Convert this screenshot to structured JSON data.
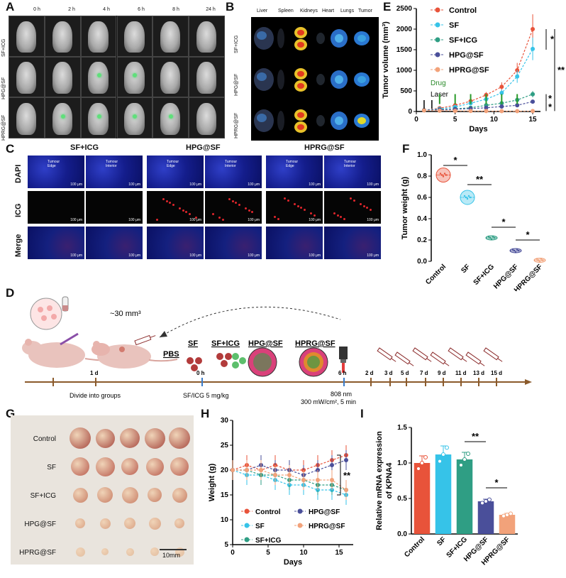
{
  "panel_labels": {
    "a": "A",
    "b": "B",
    "c": "C",
    "d": "D",
    "e": "E",
    "f": "F",
    "g": "G",
    "h": "H",
    "i": "I"
  },
  "panel_a": {
    "times": [
      "0 h",
      "2 h",
      "4 h",
      "6 h",
      "8 h",
      "24 h"
    ],
    "rows": [
      "SF+ICG",
      "HPG@SF",
      "HPRG@SF"
    ]
  },
  "panel_b": {
    "organs": [
      "Liver",
      "Spleen",
      "Kidneys",
      "Heart",
      "Lungs",
      "Tumor"
    ],
    "rows": [
      "SF+ICG",
      "HPG@SF",
      "HPRG@SF"
    ]
  },
  "panel_c": {
    "groups": [
      "SF+ICG",
      "HPG@SF",
      "HPRG@SF"
    ],
    "rows": [
      "DAPI",
      "ICG",
      "Merge"
    ],
    "tumour_edge": "Tumour Edge",
    "tumour_interior": "Tumour Interior",
    "scale_bar": "100 μm"
  },
  "panel_d": {
    "volume_label": "~30 mm³",
    "groups": [
      "PBS",
      "SF",
      "SF+ICG",
      "HPG@SF",
      "HPRG@SF"
    ],
    "ticks": [
      "1 d",
      "0 h",
      "6 h",
      "2 d",
      "3 d",
      "5 d",
      "7 d",
      "9 d",
      "11 d",
      "13 d",
      "15 d"
    ],
    "divide": "Divide into groups",
    "dose": "SF/ICG 5 mg/kg",
    "laser_wavelength": "808 nm",
    "laser_power": "300 mW/cm², 5 min"
  },
  "panel_g": {
    "rows": [
      "Control",
      "SF",
      "SF+ICG",
      "HPG@SF",
      "HPRG@SF"
    ],
    "scale": "10mm"
  },
  "chart_data": [
    {
      "id": "E",
      "type": "line",
      "xlabel": "Days",
      "ylabel": "Tumor volume (mm³)",
      "xlim": [
        0,
        16
      ],
      "ylim": [
        0,
        2500
      ],
      "xticks": [
        0,
        5,
        10,
        15
      ],
      "yticks": [
        0,
        500,
        1000,
        1500,
        2000,
        2500
      ],
      "x": [
        1,
        3,
        5,
        7,
        9,
        11,
        13,
        15
      ],
      "series": [
        {
          "name": "Control",
          "color": "#e8533a",
          "values": [
            30,
            80,
            150,
            250,
            400,
            600,
            1000,
            2000
          ]
        },
        {
          "name": "SF",
          "color": "#36c3e8",
          "values": [
            30,
            60,
            110,
            200,
            300,
            450,
            850,
            1520
          ]
        },
        {
          "name": "SF+ICG",
          "color": "#2f9e84",
          "values": [
            30,
            45,
            65,
            90,
            150,
            200,
            280,
            420
          ]
        },
        {
          "name": "HPG@SF",
          "color": "#4a4f9a",
          "values": [
            30,
            40,
            55,
            70,
            90,
            120,
            150,
            240
          ]
        },
        {
          "name": "HPRG@SF",
          "color": "#f2a27a",
          "values": [
            25,
            20,
            15,
            12,
            10,
            8,
            8,
            10
          ]
        }
      ],
      "drug_label": "Drug",
      "laser_label": "Laser",
      "drug_days": [
        3,
        5,
        7,
        9,
        11,
        13
      ],
      "laser_days": [
        1,
        2
      ],
      "significance": [
        "*",
        "**",
        "*",
        "*"
      ]
    },
    {
      "id": "F",
      "type": "violin",
      "ylabel": "Tumor weight (g)",
      "ylim": [
        0,
        1.0
      ],
      "yticks": [
        "0.0",
        "0.2",
        "0.4",
        "0.6",
        "0.8",
        "1.0"
      ],
      "categories": [
        "Control",
        "SF",
        "SF+ICG",
        "HPG@SF",
        "HPRG@SF"
      ],
      "colors": [
        "#e8533a",
        "#36c3e8",
        "#2f9e84",
        "#4a4f9a",
        "#f2a27a"
      ],
      "values": [
        0.81,
        0.6,
        0.22,
        0.1,
        0.01
      ],
      "significance": [
        "*",
        "**",
        "*",
        "*"
      ]
    },
    {
      "id": "H",
      "type": "line",
      "xlabel": "Days",
      "ylabel": "Weight (g)",
      "xlim": [
        0,
        17
      ],
      "ylim": [
        5,
        30
      ],
      "xticks": [
        0,
        5,
        10,
        15
      ],
      "yticks": [
        5,
        10,
        15,
        20,
        25,
        30
      ],
      "x": [
        0,
        2,
        4,
        6,
        8,
        10,
        12,
        14,
        16
      ],
      "series": [
        {
          "name": "Control",
          "color": "#e8533a",
          "values": [
            20,
            21,
            20,
            21,
            20,
            20,
            21,
            22,
            23
          ]
        },
        {
          "name": "SF",
          "color": "#36c3e8",
          "values": [
            20,
            19,
            19,
            18,
            17,
            17,
            16,
            16,
            15
          ]
        },
        {
          "name": "SF+ICG",
          "color": "#2f9e84",
          "values": [
            20,
            20,
            19,
            19,
            18,
            18,
            17,
            17,
            16
          ]
        },
        {
          "name": "HPG@SF",
          "color": "#4a4f9a",
          "values": [
            20,
            20,
            21,
            20,
            20,
            19,
            20,
            21,
            22
          ]
        },
        {
          "name": "HPRG@SF",
          "color": "#f2a27a",
          "values": [
            20,
            20,
            20,
            19,
            19,
            18,
            18,
            18,
            16
          ]
        }
      ],
      "significance": [
        "**"
      ]
    },
    {
      "id": "I",
      "type": "bar",
      "ylabel": "Relative mRNA expression of KPNA4",
      "ylim": [
        0,
        1.5
      ],
      "yticks": [
        "0.0",
        "0.5",
        "1.0",
        "1.5"
      ],
      "categories": [
        "Control",
        "SF",
        "SF+ICG",
        "HPG@SF",
        "HPRG@SF"
      ],
      "colors": [
        "#e8533a",
        "#36c3e8",
        "#2f9e84",
        "#4a4f9a",
        "#f2a27a"
      ],
      "values": [
        1.0,
        1.12,
        1.05,
        0.46,
        0.27
      ],
      "errors": [
        0.1,
        0.12,
        0.1,
        0.03,
        0.02
      ],
      "significance": [
        "**",
        "*"
      ]
    }
  ]
}
